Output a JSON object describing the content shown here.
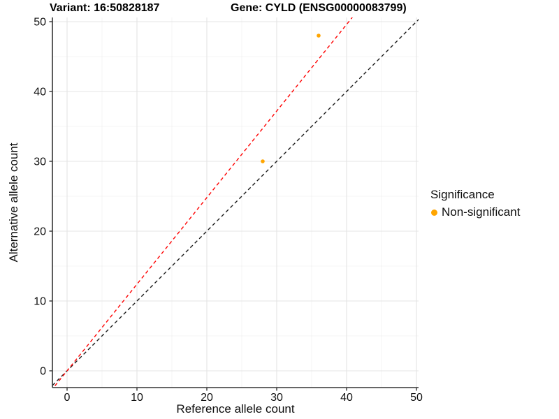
{
  "header": {
    "variant_title": "Variant: 16:50828187",
    "gene_title": "Gene: CYLD (ENSG00000083799)"
  },
  "axes": {
    "x": {
      "label": "Reference allele count"
    },
    "y": {
      "label": "Alternative allele count"
    }
  },
  "legend": {
    "title": "Significance",
    "items": [
      {
        "label": "Non-significant",
        "color": "#FFA500"
      }
    ]
  },
  "chart_data": {
    "type": "scatter",
    "title": "Variant: 16:50828187   Gene: CYLD (ENSG00000083799)",
    "xlabel": "Reference allele count",
    "ylabel": "Alternative allele count",
    "xlim": [
      -2.1,
      50.3
    ],
    "ylim": [
      -2.4,
      50.6
    ],
    "x_ticks": [
      0,
      10,
      20,
      30,
      40,
      50
    ],
    "y_ticks": [
      0,
      10,
      20,
      30,
      40,
      50
    ],
    "grid": "major+minor",
    "legend_position": "right",
    "series": [
      {
        "name": "Non-significant",
        "color": "#FFA500",
        "points": [
          {
            "x": 28,
            "y": 30
          },
          {
            "x": 36,
            "y": 48
          }
        ]
      }
    ],
    "ablines": [
      {
        "name": "identity-line",
        "slope": 1,
        "intercept": 0,
        "color": "#1A1A1A",
        "linestyle": "dashed"
      },
      {
        "name": "allelic-ratio-line",
        "slope": 1.24,
        "intercept": 0,
        "color": "#FF0000",
        "linestyle": "dashed"
      }
    ]
  },
  "colors": {
    "point": "#FFA500",
    "grid_major": "#E4E4E4",
    "grid_minor": "#F2F2F2",
    "axis": "#333333"
  }
}
